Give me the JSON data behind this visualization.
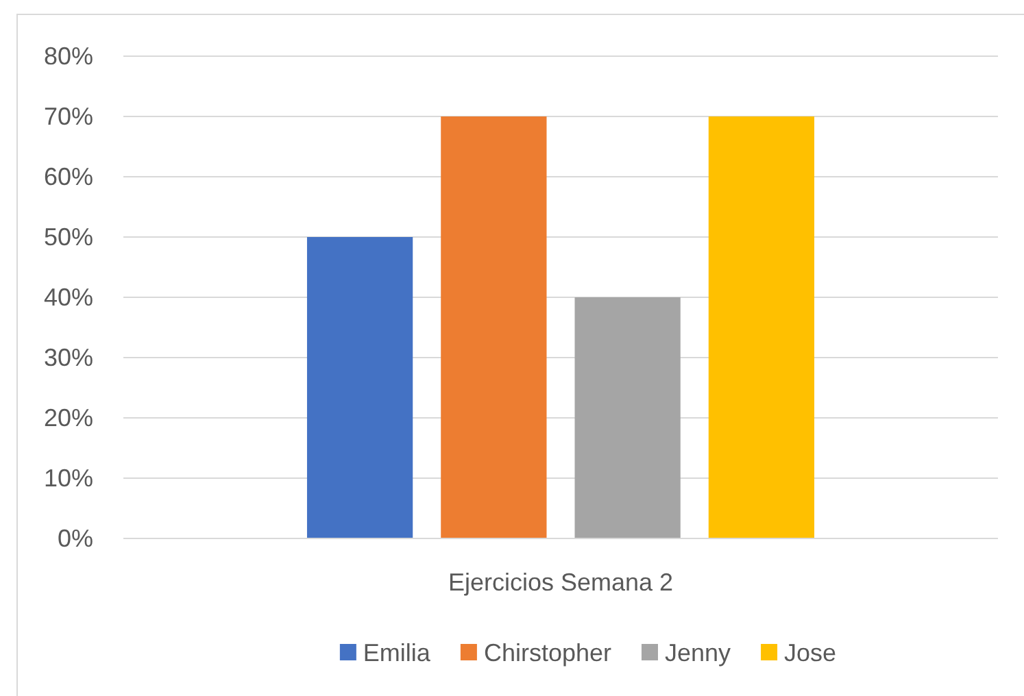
{
  "chart_data": {
    "type": "bar",
    "categories": [
      "Ejercicios Semana 2"
    ],
    "series": [
      {
        "name": "Emilia",
        "color": "#4472c4",
        "values": [
          50
        ]
      },
      {
        "name": "Chirstopher",
        "color": "#ed7d31",
        "values": [
          70
        ]
      },
      {
        "name": "Jenny",
        "color": "#a5a5a5",
        "values": [
          40
        ]
      },
      {
        "name": "Jose",
        "color": "#ffc000",
        "values": [
          70
        ]
      }
    ],
    "ylim": [
      0,
      80
    ],
    "yticks": [
      {
        "value": 0,
        "label": "0%"
      },
      {
        "value": 10,
        "label": "10%"
      },
      {
        "value": 20,
        "label": "20%"
      },
      {
        "value": 30,
        "label": "30%"
      },
      {
        "value": 40,
        "label": "40%"
      },
      {
        "value": 50,
        "label": "50%"
      },
      {
        "value": 60,
        "label": "60%"
      },
      {
        "value": 70,
        "label": "70%"
      },
      {
        "value": 80,
        "label": "80%"
      }
    ],
    "grid": "y",
    "legend": "bottom"
  }
}
